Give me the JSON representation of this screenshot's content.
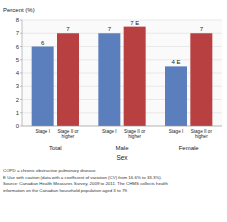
{
  "chart_data": {
    "type": "bar",
    "ylabel": "Percent (%)",
    "xlabel": "Sex",
    "categories": [
      "Total",
      "Male",
      "Female"
    ],
    "series": [
      {
        "name": "Stage I",
        "color": "#5b7fbd",
        "values": [
          6,
          7,
          4.5
        ],
        "value_labels": [
          "6",
          "7",
          "4 E"
        ]
      },
      {
        "name": "Stage II or\nhigher",
        "color": "#b94040",
        "values": [
          7,
          7.5,
          7
        ],
        "value_labels": [
          "7",
          "7 E",
          "7"
        ]
      }
    ],
    "ylim": [
      0,
      8
    ],
    "yticks": [
      0,
      1,
      2,
      3,
      4,
      5,
      6,
      7,
      8
    ],
    "grid": true,
    "data_labels": true,
    "annotations": [
      "COPD = chronic obstructive pulmonary disease.",
      "E  Use with caution (data with a coefficient of variation (CV) from 16.6% to 33.3%).",
      "Source: Canadian Health Measures Survey, 2009 to 2011. The CHMS collects health",
      "information on the Canadian household population aged 3 to 79."
    ]
  }
}
